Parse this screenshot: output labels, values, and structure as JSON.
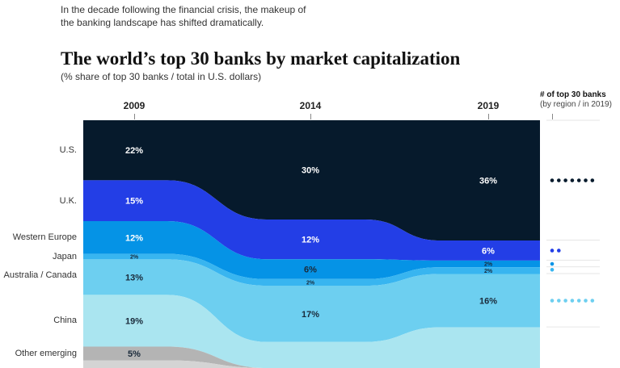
{
  "intro": "In the decade following the financial crisis, the makeup of the banking landscape has shifted dramatically.",
  "chart_data": {
    "type": "area",
    "title": "The world’s top 30 banks by market capitalization",
    "subtitle": "(% share of top 30 banks / total in U.S. dollars)",
    "categories": [
      "2009",
      "2014",
      "2019"
    ],
    "series": [
      {
        "name": "U.S.",
        "values": [
          22,
          30,
          36
        ],
        "labels": [
          "22%",
          "30%",
          "36%"
        ],
        "color": "#061a2c",
        "banks_2019": 7
      },
      {
        "name": "U.K.",
        "values": [
          15,
          12,
          6
        ],
        "labels": [
          "15%",
          "12%",
          "6%"
        ],
        "color": "#233ee6",
        "banks_2019": 2
      },
      {
        "name": "Western Europe",
        "values": [
          12,
          6,
          2
        ],
        "labels": [
          "12%",
          "6%",
          "2%"
        ],
        "color": "#0593e6",
        "banks_2019": 1
      },
      {
        "name": "Japan",
        "values": [
          2,
          2,
          2
        ],
        "labels": [
          "2%",
          "2%",
          "2%"
        ],
        "color": "#38b5f0",
        "banks_2019": 1
      },
      {
        "name": "Australia / Canada",
        "values": [
          13,
          17,
          16
        ],
        "labels": [
          "13%",
          "17%",
          "16%"
        ],
        "color": "#6dcff0",
        "banks_2019": 7
      },
      {
        "name": "China",
        "values": [
          19,
          null,
          null
        ],
        "labels": [
          "19%",
          null,
          null
        ],
        "color": "#aae5f0",
        "banks_2019": null
      },
      {
        "name": "Other emerging",
        "values": [
          5,
          null,
          null
        ],
        "labels": [
          "5%",
          null,
          null
        ],
        "color": "#b4b4b4",
        "banks_2019": null
      },
      {
        "name": "",
        "values": [
          null,
          null,
          null
        ],
        "labels": [
          null,
          null,
          null
        ],
        "color": "#d4d4d4",
        "banks_2019": null
      }
    ],
    "panel_title": "# of top 30 banks",
    "panel_subtitle": "(by region / in 2019)",
    "legend": "left"
  }
}
